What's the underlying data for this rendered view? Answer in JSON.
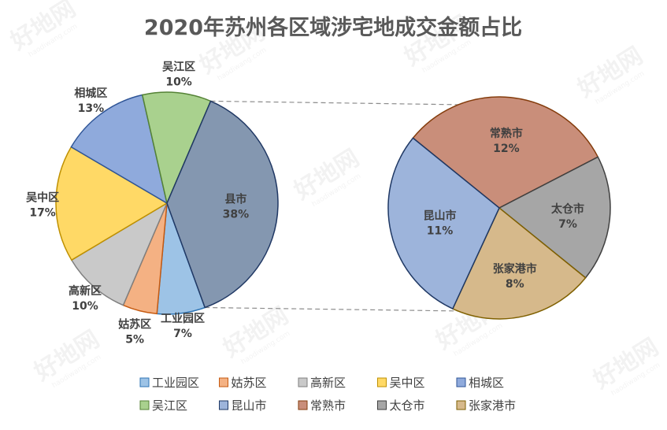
{
  "chart_data": {
    "type": "pie",
    "title": "2020年苏州各区域涉宅地成交金额占比",
    "main_pie": [
      {
        "name": "工业园区",
        "label": "工业园区",
        "pct_label": "7%",
        "value": 7,
        "color": "#9DC3E6",
        "stroke": "#2E75B6"
      },
      {
        "name": "姑苏区",
        "label": "姑苏区",
        "pct_label": "5%",
        "value": 5,
        "color": "#F4B183",
        "stroke": "#C55A11"
      },
      {
        "name": "高新区",
        "label": "高新区",
        "pct_label": "10%",
        "value": 10,
        "color": "#C9C9C9",
        "stroke": "#7F7F7F"
      },
      {
        "name": "吴中区",
        "label": "吴中区",
        "pct_label": "17%",
        "value": 17,
        "color": "#FFD966",
        "stroke": "#BF9000"
      },
      {
        "name": "相城区",
        "label": "相城区",
        "pct_label": "13%",
        "value": 13,
        "color": "#8FAADC",
        "stroke": "#2F5597"
      },
      {
        "name": "吴江区",
        "label": "吴江区",
        "pct_label": "10%",
        "value": 10,
        "color": "#A9D18E",
        "stroke": "#548235"
      },
      {
        "name": "县市",
        "label": "县市",
        "pct_label": "38%",
        "value": 38,
        "color": "#8497B0",
        "stroke": "#203864"
      }
    ],
    "sub_pie": [
      {
        "name": "常熟市",
        "label": "常熟市",
        "pct_label": "12%",
        "value": 12,
        "color": "#C98E7A",
        "stroke": "#843C0C"
      },
      {
        "name": "太仓市",
        "label": "太仓市",
        "pct_label": "7%",
        "value": 7,
        "color": "#A6A6A6",
        "stroke": "#404040"
      },
      {
        "name": "张家港市",
        "label": "张家港市",
        "pct_label": "8%",
        "value": 8,
        "color": "#D6B98B",
        "stroke": "#7F6000"
      },
      {
        "name": "昆山市",
        "label": "昆山市",
        "pct_label": "11%",
        "value": 11,
        "color": "#9DB4DB",
        "stroke": "#1F3864"
      }
    ],
    "legend": [
      {
        "name": "工业园区",
        "color": "#9DC3E6",
        "stroke": "#2E75B6"
      },
      {
        "name": "姑苏区",
        "color": "#F4B183",
        "stroke": "#C55A11"
      },
      {
        "name": "高新区",
        "color": "#C9C9C9",
        "stroke": "#7F7F7F"
      },
      {
        "name": "吴中区",
        "color": "#FFD966",
        "stroke": "#BF9000"
      },
      {
        "name": "相城区",
        "color": "#8FAADC",
        "stroke": "#2F5597"
      },
      {
        "name": "吴江区",
        "color": "#A9D18E",
        "stroke": "#548235"
      },
      {
        "name": "昆山市",
        "color": "#9DB4DB",
        "stroke": "#1F3864"
      },
      {
        "name": "常熟市",
        "color": "#C98E7A",
        "stroke": "#843C0C"
      },
      {
        "name": "太仓市",
        "color": "#A6A6A6",
        "stroke": "#404040"
      },
      {
        "name": "张家港市",
        "color": "#D6B98B",
        "stroke": "#7F6000"
      }
    ],
    "legend_position": "bottom"
  },
  "watermark": {
    "text": "好地网",
    "subtext": "haodiwang.com"
  }
}
